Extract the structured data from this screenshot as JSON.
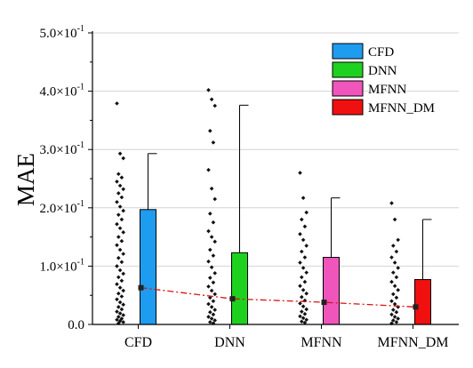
{
  "chart_data": {
    "type": "bar",
    "ylabel": "MAE",
    "ylim": [
      0,
      0.5
    ],
    "y_ticks": [
      {
        "mant": "0.0",
        "exp": ""
      },
      {
        "mant": "1.0×10",
        "exp": "-1"
      },
      {
        "mant": "2.0×10",
        "exp": "-1"
      },
      {
        "mant": "3.0×10",
        "exp": "-1"
      },
      {
        "mant": "4.0×10",
        "exp": "-1"
      },
      {
        "mant": "5.0×10",
        "exp": "-1"
      }
    ],
    "grid": "horizontal",
    "legend_position": "top-right",
    "categories": [
      "CFD",
      "DNN",
      "MFNN",
      "MFNN_DM"
    ],
    "colors": [
      "#1e9cf0",
      "#1fd11f",
      "#f055bc",
      "#f01010"
    ],
    "bars": [
      {
        "mean": 0.197,
        "whisker_top": 0.293
      },
      {
        "mean": 0.123,
        "whisker_top": 0.376
      },
      {
        "mean": 0.115,
        "whisker_top": 0.217
      },
      {
        "mean": 0.077,
        "whisker_top": 0.18
      }
    ],
    "median_line": {
      "values": [
        0.063,
        0.044,
        0.038,
        0.03
      ],
      "color": "#dd1111",
      "style": "dash-dot"
    },
    "scatter": [
      [
        0.379,
        0.293,
        0.285,
        0.258,
        0.252,
        0.245,
        0.238,
        0.232,
        0.225,
        0.218,
        0.21,
        0.202,
        0.195,
        0.188,
        0.18,
        0.172,
        0.165,
        0.158,
        0.15,
        0.143,
        0.136,
        0.128,
        0.121,
        0.114,
        0.107,
        0.1,
        0.093,
        0.087,
        0.081,
        0.075,
        0.069,
        0.063,
        0.058,
        0.053,
        0.048,
        0.043,
        0.038,
        0.034,
        0.03,
        0.026,
        0.022,
        0.019,
        0.016,
        0.013,
        0.01,
        0.008,
        0.006,
        0.004,
        0.002
      ],
      [
        0.402,
        0.386,
        0.375,
        0.332,
        0.312,
        0.265,
        0.233,
        0.215,
        0.19,
        0.175,
        0.16,
        0.15,
        0.142,
        0.128,
        0.118,
        0.108,
        0.098,
        0.088,
        0.08,
        0.072,
        0.065,
        0.058,
        0.052,
        0.046,
        0.04,
        0.035,
        0.03,
        0.025,
        0.021,
        0.017,
        0.013,
        0.01,
        0.007,
        0.004,
        0.002
      ],
      [
        0.26,
        0.217,
        0.192,
        0.18,
        0.168,
        0.155,
        0.145,
        0.135,
        0.125,
        0.115,
        0.106,
        0.097,
        0.089,
        0.081,
        0.073,
        0.066,
        0.059,
        0.053,
        0.047,
        0.041,
        0.036,
        0.031,
        0.026,
        0.022,
        0.018,
        0.014,
        0.011,
        0.008,
        0.005,
        0.003
      ],
      [
        0.208,
        0.18,
        0.145,
        0.135,
        0.125,
        0.115,
        0.106,
        0.097,
        0.089,
        0.081,
        0.073,
        0.066,
        0.059,
        0.052,
        0.046,
        0.04,
        0.035,
        0.03,
        0.025,
        0.021,
        0.017,
        0.013,
        0.01,
        0.007,
        0.004,
        0.002
      ]
    ]
  }
}
